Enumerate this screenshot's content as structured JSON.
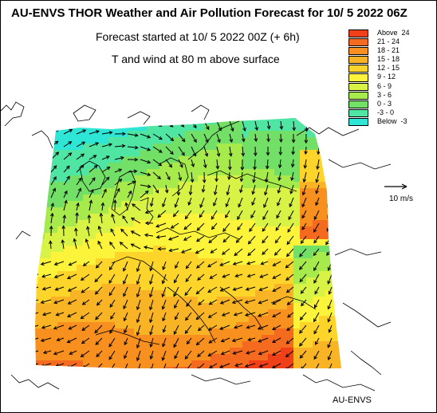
{
  "header": {
    "title": "AU-ENVS THOR Weather and Air Pollution Forecast for 10/ 5 2022  06Z",
    "subtitle": "Forecast started at 10/ 5 2022  00Z (+ 6h)",
    "variable": "T and wind at 80 m above surface"
  },
  "legend": {
    "items": [
      {
        "label": "Above  24",
        "color": "#f0401a"
      },
      {
        "label": "21 - 24",
        "color": "#f46a1e"
      },
      {
        "label": "18 - 21",
        "color": "#f7901e"
      },
      {
        "label": "15 - 18",
        "color": "#f9b425"
      },
      {
        "label": "12 - 15",
        "color": "#fcd42a"
      },
      {
        "label": "9 - 12",
        "color": "#fcf43a"
      },
      {
        "label": "6 - 9",
        "color": "#d9f246"
      },
      {
        "label": "3 - 6",
        "color": "#a6ea4c"
      },
      {
        "label": "0 - 3",
        "color": "#72df66"
      },
      {
        "label": "-3 - 0",
        "color": "#4fe6a4"
      },
      {
        "label": "Below  -3",
        "color": "#2ee6d6"
      }
    ]
  },
  "wind_scale": {
    "label": "10 m/s"
  },
  "footer": {
    "credit": "AU-ENVS"
  }
}
